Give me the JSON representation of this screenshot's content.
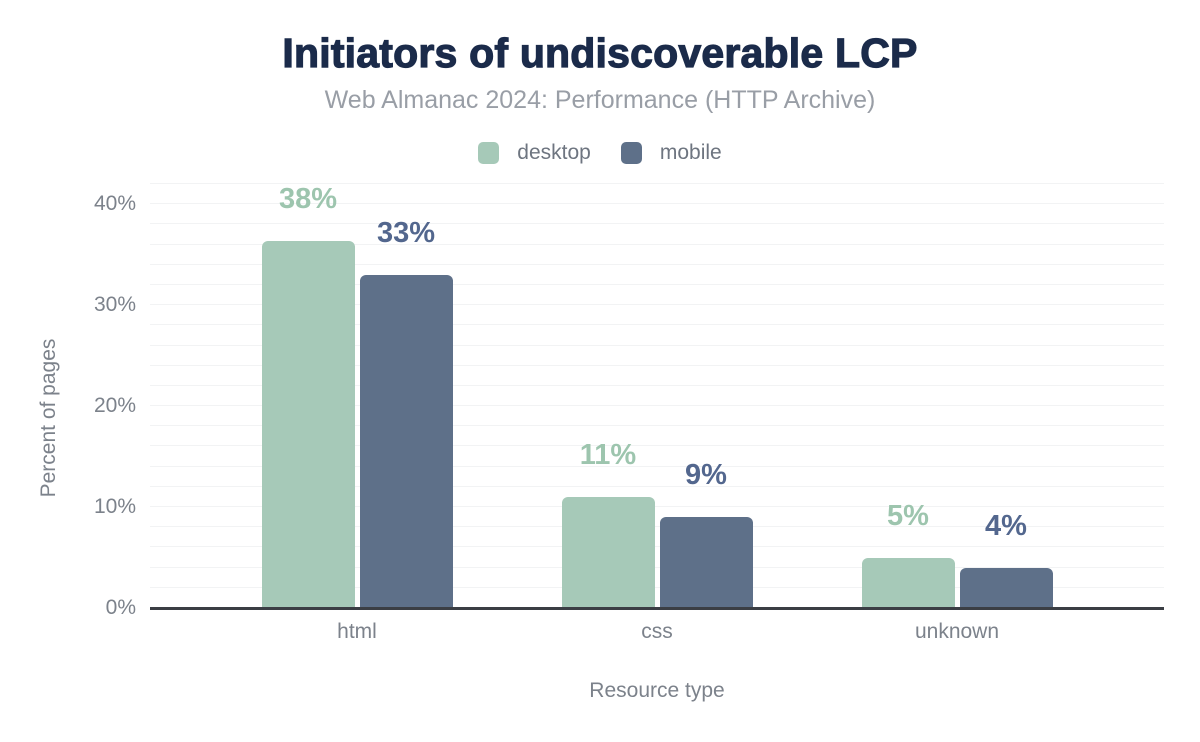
{
  "chart_data": {
    "type": "bar",
    "title": "Initiators of undiscoverable LCP",
    "subtitle": "Web Almanac 2024: Performance (HTTP Archive)",
    "categories": [
      "html",
      "css",
      "unknown"
    ],
    "series": [
      {
        "name": "desktop",
        "values": [
          38,
          11,
          5
        ],
        "labels": [
          "38%",
          "11%",
          "5%"
        ],
        "color": "#a6c9b8",
        "label_color": "#9dc5ae"
      },
      {
        "name": "mobile",
        "values": [
          33,
          9,
          4
        ],
        "labels": [
          "33%",
          "9%",
          "4%"
        ],
        "color": "#5e7089",
        "label_color": "#53678e"
      }
    ],
    "xlabel": "Resource type",
    "ylabel": "Percent of pages",
    "ylim": [
      0,
      40
    ],
    "y_ticks": [
      {
        "value": 0,
        "label": "0%"
      },
      {
        "value": 10,
        "label": "10%"
      },
      {
        "value": 20,
        "label": "20%"
      },
      {
        "value": 30,
        "label": "30%"
      },
      {
        "value": 40,
        "label": "40%"
      }
    ],
    "grid": {
      "horizontal": true,
      "minor_step": 2,
      "vertical": false
    },
    "legend_position": "top-center"
  },
  "style": {
    "background": "#ffffff",
    "title_color": "#1b2b4a",
    "subtitle_color": "#999ea6",
    "axis_text_color": "#7c828b",
    "legend_text_color": "#6e7580",
    "axis_line_color": "#3b3e44",
    "gridline_color": "#f2f3f4"
  }
}
